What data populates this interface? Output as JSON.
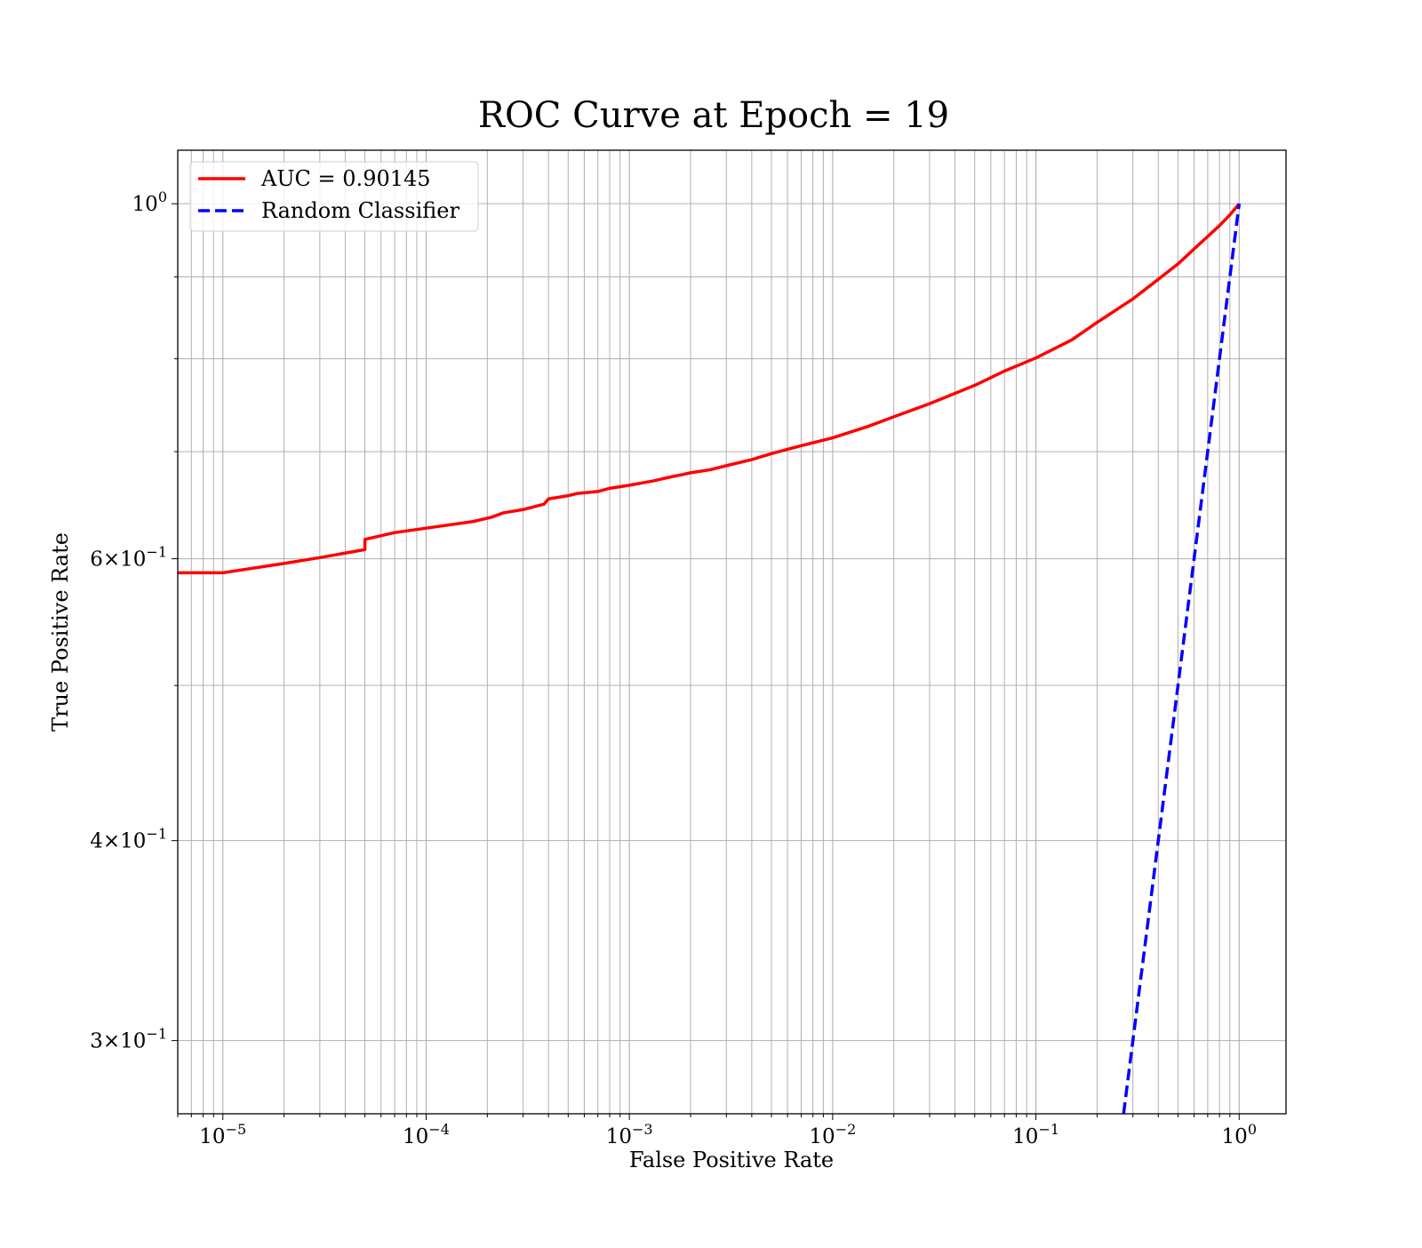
{
  "chart_data": {
    "type": "line",
    "title": "ROC Curve at Epoch = 19",
    "xlabel": "False Positive Rate",
    "ylabel": "True Positive Rate",
    "xscale": "log",
    "yscale": "log",
    "xlim": [
      6e-06,
      1.7
    ],
    "ylim": [
      0.27,
      1.08
    ],
    "grid": true,
    "grid_which": "both",
    "legend_position": "upper-left",
    "x_ticks": [
      {
        "value": 1e-05,
        "base": "10",
        "exp": "−5"
      },
      {
        "value": 0.0001,
        "base": "10",
        "exp": "−4"
      },
      {
        "value": 0.001,
        "base": "10",
        "exp": "−3"
      },
      {
        "value": 0.01,
        "base": "10",
        "exp": "−2"
      },
      {
        "value": 0.1,
        "base": "10",
        "exp": "−1"
      },
      {
        "value": 1,
        "base": "10",
        "exp": "0"
      }
    ],
    "y_ticks": [
      {
        "value": 1.0,
        "base": "10",
        "exp": "0"
      },
      {
        "value": 0.6,
        "base": "6×10",
        "exp": "−1"
      },
      {
        "value": 0.4,
        "base": "4×10",
        "exp": "−1"
      },
      {
        "value": 0.3,
        "base": "3×10",
        "exp": "−1"
      }
    ],
    "y_minor_ticks": [
      0.5,
      0.7,
      0.8,
      0.9
    ],
    "series": [
      {
        "name": "AUC = 0.90145",
        "color": "#ff0000",
        "style": "solid",
        "x": [
          6e-06,
          1e-05,
          2e-05,
          3e-05,
          5e-05,
          5e-05,
          7e-05,
          0.0001,
          0.00017,
          0.00021,
          0.00024,
          0.0003,
          0.00038,
          0.0004,
          0.0005,
          0.00055,
          0.0007,
          0.0008,
          0.001,
          0.0013,
          0.0016,
          0.0018,
          0.002,
          0.0025,
          0.003,
          0.004,
          0.005,
          0.007,
          0.01,
          0.015,
          0.02,
          0.03,
          0.05,
          0.07,
          0.1,
          0.15,
          0.2,
          0.3,
          0.4,
          0.5,
          0.6,
          0.7,
          0.8,
          0.9,
          1.0
        ],
        "y": [
          0.588,
          0.588,
          0.596,
          0.601,
          0.608,
          0.617,
          0.623,
          0.627,
          0.633,
          0.637,
          0.641,
          0.644,
          0.649,
          0.654,
          0.657,
          0.659,
          0.661,
          0.664,
          0.667,
          0.671,
          0.675,
          0.677,
          0.679,
          0.682,
          0.686,
          0.692,
          0.698,
          0.706,
          0.714,
          0.726,
          0.736,
          0.75,
          0.77,
          0.786,
          0.801,
          0.822,
          0.843,
          0.872,
          0.897,
          0.917,
          0.937,
          0.954,
          0.969,
          0.984,
          1.0
        ]
      },
      {
        "name": "Random Classifier",
        "color": "#0000ff",
        "style": "dashed",
        "x": [
          0.27,
          1.0
        ],
        "y": [
          0.27,
          1.0
        ]
      }
    ]
  }
}
